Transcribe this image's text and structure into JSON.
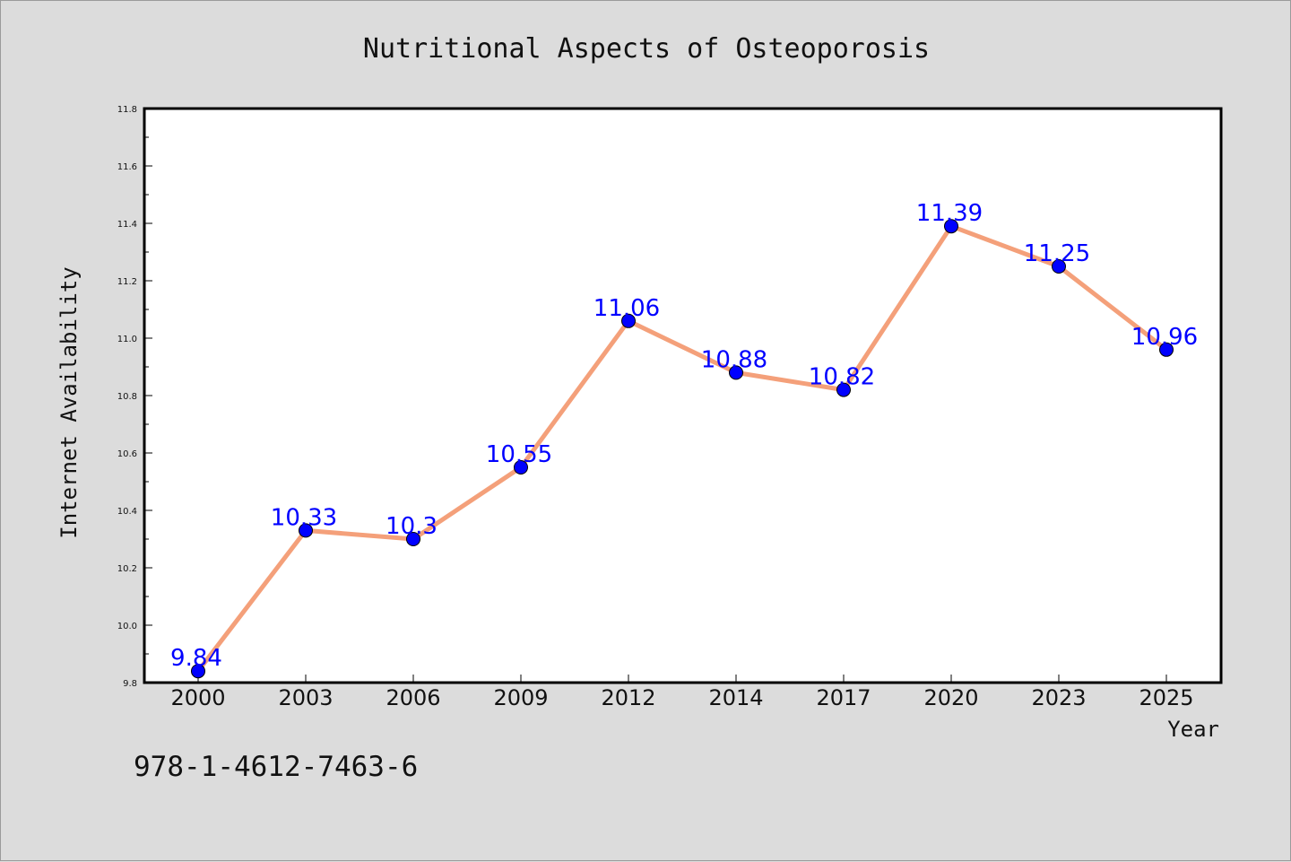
{
  "chart_data": {
    "type": "line",
    "title": "Nutritional Aspects of Osteoporosis",
    "xlabel": "Year",
    "ylabel": "Internet Availability",
    "categories": [
      "2000",
      "2003",
      "2006",
      "2009",
      "2012",
      "2014",
      "2017",
      "2020",
      "2023",
      "2025"
    ],
    "series": [
      {
        "values": [
          9.84,
          10.33,
          10.3,
          10.55,
          11.06,
          10.88,
          10.82,
          11.39,
          11.25,
          10.96
        ]
      }
    ],
    "data_labels": [
      "9.84",
      "10.33",
      "10.3",
      "10.55",
      "11.06",
      "10.88",
      "10.82",
      "11.39",
      "11.25",
      "10.96"
    ],
    "ylim": [
      9.8,
      11.8
    ],
    "yticks": [
      "9.8",
      "10.0",
      "10.2",
      "10.4",
      "10.6",
      "10.8",
      "11.0",
      "11.2",
      "11.4",
      "11.6",
      "11.8"
    ],
    "grid": false,
    "colors": {
      "line": "#f4a07a",
      "marker": "#0000ff",
      "label": "#0000ff",
      "background": "#dcdcdc",
      "plot_area": "#ffffff"
    }
  },
  "footnote": "978-1-4612-7463-6"
}
